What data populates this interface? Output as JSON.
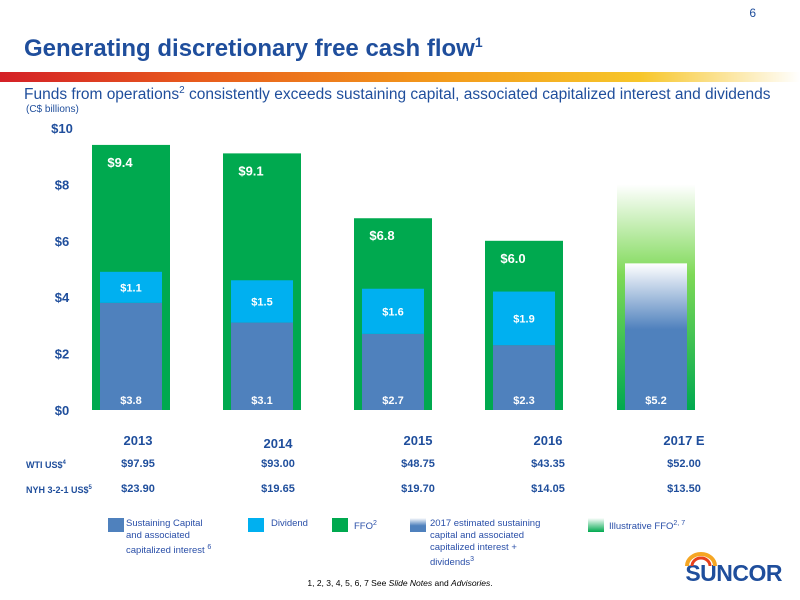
{
  "page_number": "6",
  "title": "Generating discretionary free cash flow",
  "title_sup": "1",
  "subtitle_a": "Funds from operations",
  "subtitle_sup": "2",
  "subtitle_b": " consistently exceeds sustaining capital, associated capitalized interest and dividends",
  "units": "(C$ billions)",
  "chart_data": {
    "type": "bar",
    "categories": [
      "2013",
      "2014",
      "2015",
      "2016",
      "2017 E"
    ],
    "ylim": [
      0,
      10
    ],
    "yticks": [
      "$0",
      "$2",
      "$4",
      "$6",
      "$8",
      "$10"
    ],
    "series": [
      {
        "name": "FFO",
        "values": [
          9.4,
          9.1,
          6.8,
          6.0,
          8.0
        ],
        "labels": [
          "$9.4",
          "$9.1",
          "$6.8",
          "$6.0",
          ""
        ]
      },
      {
        "name": "Sustaining Capital and associated capitalized interest",
        "values": [
          3.8,
          3.1,
          2.7,
          2.3,
          5.2
        ],
        "labels": [
          "$3.8",
          "$3.1",
          "$2.7",
          "$2.3",
          "$5.2"
        ]
      },
      {
        "name": "Dividend",
        "values": [
          1.1,
          1.5,
          1.6,
          1.9,
          0
        ],
        "labels": [
          "$1.1",
          "$1.5",
          "$1.6",
          "$1.9",
          ""
        ]
      }
    ],
    "colors": {
      "ffo": "#00a94f",
      "sustaining": "#4f81bd",
      "dividend": "#00b0f0",
      "ffo_grad_top": "#ffffff",
      "est_grad_top": "#ffffff"
    }
  },
  "rows": [
    {
      "label": "WTI US$",
      "sup": "4",
      "values": [
        "$97.95",
        "$93.00",
        "$48.75",
        "$43.35",
        "$52.00"
      ]
    },
    {
      "label": "NYH 3-2-1 US$",
      "sup": "5",
      "values": [
        "$23.90",
        "$19.65",
        "$19.70",
        "$14.05",
        "$13.50"
      ]
    }
  ],
  "legend": {
    "sustaining_lines": [
      "Sustaining Capital",
      "and associated",
      "capitalized interest"
    ],
    "sustaining_sup": "6",
    "dividend": "Dividend",
    "ffo": "FFO",
    "ffo_sup": "2",
    "estimated_lines": [
      "2017 estimated sustaining",
      "capital and associated",
      "capitalized interest +",
      "dividends"
    ],
    "estimated_sup": "3",
    "illustrative": "Illustrative FFO",
    "illustrative_sup": "2, 7"
  },
  "footnote_a": "1, 2, 3, 4, 5, 6, 7  See ",
  "footnote_b": "Slide Notes",
  "footnote_c": " and ",
  "footnote_d": "Advisories",
  "footnote_e": ".",
  "logo_text": "SUNCOR"
}
